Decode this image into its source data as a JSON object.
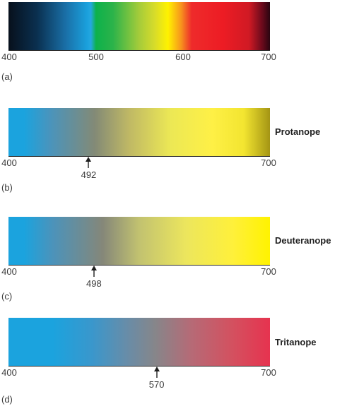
{
  "axis": {
    "min": 400,
    "max": 700
  },
  "panels": [
    {
      "label": "(a)",
      "title": "",
      "ticks": [
        "400",
        "500",
        "600",
        "700"
      ],
      "marker": null
    },
    {
      "label": "(b)",
      "title": "Protanope",
      "ticks": [
        "400",
        "700"
      ],
      "marker": {
        "value": 492,
        "text": "492"
      }
    },
    {
      "label": "(c)",
      "title": "Deuteranope",
      "ticks": [
        "400",
        "700"
      ],
      "marker": {
        "value": 498,
        "text": "498"
      }
    },
    {
      "label": "(d)",
      "title": "Tritanope",
      "ticks": [
        "400",
        "700"
      ],
      "marker": {
        "value": 570,
        "text": "570"
      }
    }
  ]
}
